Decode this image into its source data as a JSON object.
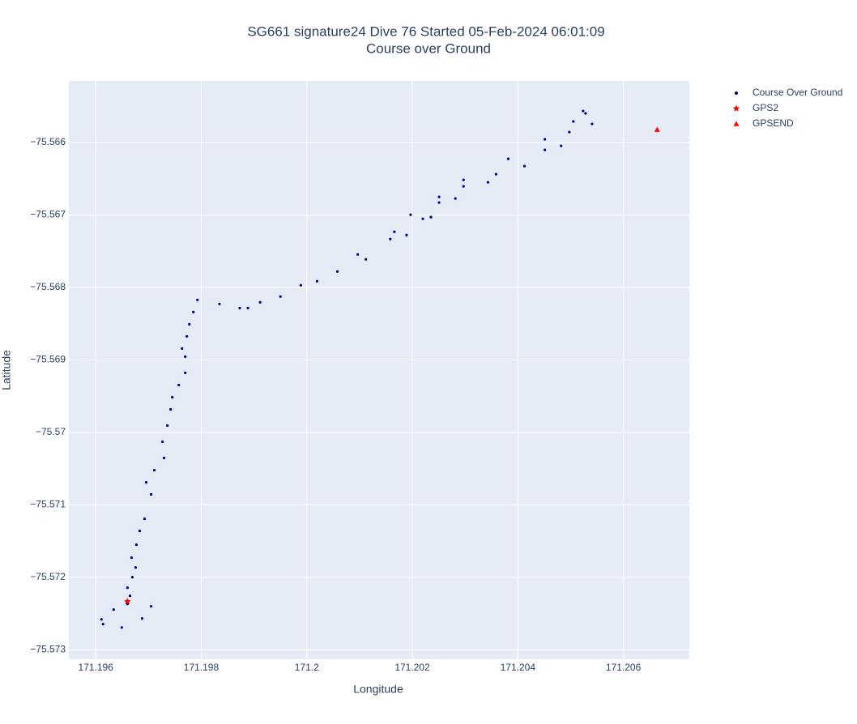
{
  "chart_data": {
    "type": "scatter",
    "title": "SG661 signature24 Dive 76 Started 05-Feb-2024 06:01:09",
    "subtitle": "Course over Ground",
    "x_label": "Longitude",
    "y_label": "Latitude",
    "xlim": [
      171.19549,
      171.20725
    ],
    "ylim": [
      -75.57313,
      -75.56515
    ],
    "xticks": [
      171.196,
      171.198,
      171.2,
      171.202,
      171.204,
      171.206
    ],
    "yticks": [
      {
        "value": -75.566,
        "label": "−75.566"
      },
      {
        "value": -75.567,
        "label": "−75.567"
      },
      {
        "value": -75.568,
        "label": "−75.568"
      },
      {
        "value": -75.569,
        "label": "−75.569"
      },
      {
        "value": -75.57,
        "label": "−75.57"
      },
      {
        "value": -75.571,
        "label": "−75.571"
      },
      {
        "value": -75.572,
        "label": "−75.572"
      },
      {
        "value": -75.573,
        "label": "−75.573"
      }
    ],
    "grid": true,
    "legend": "right",
    "series": [
      {
        "name": "Course Over Ground",
        "color": "#00008b",
        "symbol": "circle",
        "x": [
          171.196601,
          171.197049,
          171.196879,
          171.196493,
          171.196139,
          171.196108,
          171.196339,
          171.196601,
          171.196648,
          171.196601,
          171.196694,
          171.196756,
          171.196679,
          171.196771,
          171.196833,
          171.196925,
          171.197049,
          171.196956,
          171.19711,
          171.197295,
          171.197264,
          171.197357,
          171.197419,
          171.19745,
          171.197573,
          171.197696,
          171.197696,
          171.197635,
          171.197727,
          171.197773,
          171.19785,
          171.197928,
          171.198344,
          171.198729,
          171.198884,
          171.199115,
          171.1995,
          171.199886,
          171.200194,
          171.20058,
          171.20112,
          171.200965,
          171.201582,
          171.201891,
          171.201659,
          171.202199,
          171.202353,
          171.201968,
          171.202507,
          171.202816,
          171.202507,
          171.20297,
          171.203433,
          171.20297,
          171.203587,
          171.204126,
          171.203818,
          171.204512,
          171.20482,
          171.204512,
          171.204975,
          171.205407,
          171.205052,
          171.205283,
          171.205237
        ],
        "y": [
          -75.572333,
          -75.5724,
          -75.572568,
          -75.572692,
          -75.572647,
          -75.57258,
          -75.572445,
          -75.572367,
          -75.572255,
          -75.572143,
          -75.571998,
          -75.571864,
          -75.571729,
          -75.57155,
          -75.57136,
          -75.571192,
          -75.570856,
          -75.570689,
          -75.570521,
          -75.570353,
          -75.570129,
          -75.569905,
          -75.569682,
          -75.569514,
          -75.569346,
          -75.569178,
          -75.568954,
          -75.568842,
          -75.568674,
          -75.568507,
          -75.568339,
          -75.568171,
          -75.568227,
          -75.568283,
          -75.568283,
          -75.568204,
          -75.568126,
          -75.567969,
          -75.567913,
          -75.567779,
          -75.567611,
          -75.567544,
          -75.567332,
          -75.567276,
          -75.567231,
          -75.567052,
          -75.567029,
          -75.566996,
          -75.566828,
          -75.566772,
          -75.56675,
          -75.566604,
          -75.566548,
          -75.566515,
          -75.566436,
          -75.566325,
          -75.566224,
          -75.566101,
          -75.566045,
          -75.565955,
          -75.565855,
          -75.565743,
          -75.565709,
          -75.565597,
          -75.565564
        ]
      },
      {
        "name": "GPS2",
        "color": "#ff0000",
        "symbol": "star",
        "x": [
          171.196601
        ],
        "y": [
          -75.572333
        ]
      },
      {
        "name": "GPSEND",
        "color": "#ff0000",
        "symbol": "triangle-up",
        "x": [
          171.20664
        ],
        "y": [
          -75.565821
        ]
      }
    ]
  }
}
